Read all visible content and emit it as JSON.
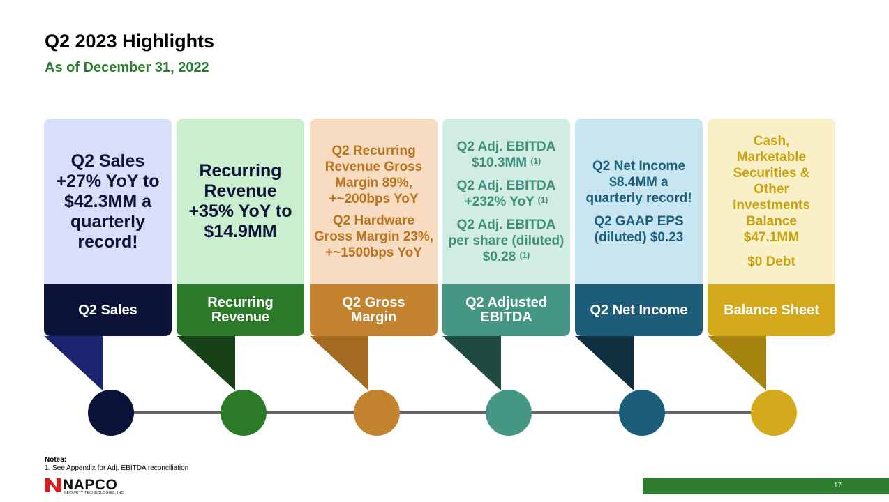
{
  "header": {
    "title": "Q2 2023 Highlights",
    "subtitle": "As of December 31, 2022"
  },
  "colors": {
    "sales": "#0c1338",
    "recurring": "#2a7a2a",
    "gross_margin": "#c4842f",
    "ebitda": "#459682",
    "net_income": "#1d5d7a",
    "balance": "#d4aa1c"
  },
  "cards": [
    {
      "band_label": "Q2 Sales",
      "lines": [
        "Q2 Sales +27% YoY to $42.3MM a quarterly record!"
      ]
    },
    {
      "band_label": "Recurring\nRevenue",
      "lines": [
        "Recurring Revenue +35% YoY to $14.9MM"
      ]
    },
    {
      "band_label": "Q2 Gross\nMargin",
      "lines": [
        "Q2 Recurring Revenue Gross Margin 89%, +~200bps YoY",
        "Q2 Hardware Gross Margin 23%, +~1500bps YoY"
      ]
    },
    {
      "band_label": "Q2 Adjusted\nEBITDA",
      "lines": [
        "Q2 Adj. EBITDA $10.3MM",
        "Q2 Adj. EBITDA +232% YoY",
        "Q2 Adj. EBITDA per share (diluted) $0.28"
      ],
      "footnote_mark": "(1)"
    },
    {
      "band_label": "Q2 Net Income",
      "lines": [
        "Q2 Net Income $8.4MM a quarterly record!",
        "Q2 GAAP EPS (diluted) $0.23"
      ]
    },
    {
      "band_label": "Balance Sheet",
      "lines": [
        "Cash, Marketable Securities & Other Investments Balance $47.1MM",
        "$0 Debt"
      ]
    }
  ],
  "notes": {
    "heading": "Notes:",
    "item1": "1.   See Appendix for Adj. EBITDA reconciliation"
  },
  "footer": {
    "logo_text": "NAPCO",
    "logo_sub": "SECURITY TECHNOLOGIES, INC.",
    "page_number": "17"
  }
}
